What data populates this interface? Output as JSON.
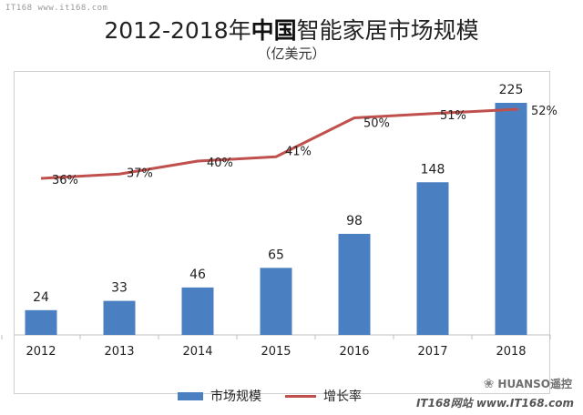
{
  "watermark_top": "IT168 www.it168.com",
  "title_prefix": "2012-2018年",
  "title_strong": "中国",
  "title_suffix": "智能家居市场规模",
  "unit": "（亿美元）",
  "legend": {
    "bar_label": "市场规模",
    "line_label": "增长率"
  },
  "watermark_br_line1": "HUANSO遥控",
  "watermark_br_line2": "IT168网站 www.IT168.com",
  "colors": {
    "bar": "#4a7fc1",
    "line": "#c0504d"
  },
  "chart_data": {
    "type": "bar",
    "categories": [
      "2012",
      "2013",
      "2014",
      "2015",
      "2016",
      "2017",
      "2018"
    ],
    "series": [
      {
        "name": "市场规模",
        "type": "bar",
        "values": [
          24,
          33,
          46,
          65,
          98,
          148,
          225
        ]
      },
      {
        "name": "增长率",
        "type": "line",
        "values": [
          36,
          37,
          40,
          41,
          50,
          51,
          52
        ],
        "labels": [
          "36%",
          "37%",
          "40%",
          "41%",
          "50%",
          "51%",
          "52%"
        ]
      }
    ],
    "grid": false,
    "legend_position": "bottom"
  }
}
